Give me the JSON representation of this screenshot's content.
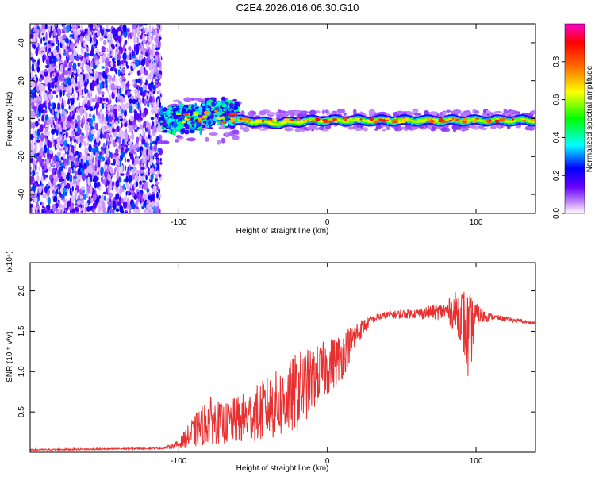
{
  "title": "C2E4.2026.016.06.30.G10",
  "colors": {
    "axis": "#000000",
    "snr_line": "#e83030",
    "background": "#ffffff"
  },
  "chart_data": [
    {
      "type": "heatmap",
      "name": "spectrogram",
      "xlabel": "Height of straight line (km)",
      "ylabel": "Frequency (Hz)",
      "xlim": [
        -200,
        140
      ],
      "ylim": [
        -50,
        50
      ],
      "x_ticks": [
        -100,
        0,
        100
      ],
      "x_tick_labels": [
        "-100",
        "0",
        "100"
      ],
      "y_ticks": [
        -40,
        -20,
        0,
        20,
        40
      ],
      "y_tick_labels": [
        "-40",
        "-20",
        "0",
        "20",
        "40"
      ],
      "colorbar": {
        "label": "Normalized spectral amplitude",
        "range": [
          0,
          1
        ],
        "ticks": [
          0.0,
          0.2,
          0.4,
          0.6,
          0.8
        ],
        "tick_labels": [
          "0.0",
          "0.2",
          "0.4",
          "0.6",
          "0.8"
        ],
        "colormap": [
          "#ffffff",
          "#cc99ff",
          "#6600ff",
          "#0000ff",
          "#00ffff",
          "#00ff00",
          "#ffff00",
          "#ff6600",
          "#ff0000",
          "#ff00cc"
        ]
      },
      "features": [
        {
          "region": "noise",
          "x_range": [
            -200,
            -112
          ],
          "freq_range": [
            -50,
            50
          ],
          "amplitude": "0.0-0.25"
        },
        {
          "region": "onset",
          "x_range": [
            -112,
            -60
          ],
          "freq_center": 0,
          "freq_spread": 8,
          "amplitude": "0.2-0.5"
        },
        {
          "region": "signal",
          "x_range": [
            -60,
            140
          ],
          "freq_center": -1,
          "freq_spread": 2,
          "amplitude": "0.4-0.9"
        }
      ]
    },
    {
      "type": "line",
      "name": "snr",
      "xlabel": "Height of straight line (km)",
      "ylabel": "SNR (10 * v/v)",
      "y_scale_label": "(x10⁴)",
      "xlim": [
        -200,
        140
      ],
      "ylim": [
        0,
        2.35
      ],
      "x_ticks": [
        -100,
        0,
        100
      ],
      "x_tick_labels": [
        "-100",
        "0",
        "100"
      ],
      "y_ticks": [
        0.5,
        1.0,
        1.5,
        2.0
      ],
      "y_tick_labels": [
        "0.5",
        "1.0",
        "1.5",
        "2.0"
      ],
      "series": [
        {
          "name": "SNR",
          "envelope_x": [
            -200,
            -150,
            -110,
            -100,
            -90,
            -80,
            -70,
            -60,
            -50,
            -40,
            -30,
            -20,
            -10,
            0,
            10,
            20,
            30,
            40,
            60,
            80,
            90,
            95,
            100,
            110,
            120,
            140
          ],
          "envelope_mean": [
            0.03,
            0.04,
            0.05,
            0.1,
            0.25,
            0.4,
            0.35,
            0.4,
            0.45,
            0.55,
            0.62,
            0.75,
            0.9,
            1.05,
            1.2,
            1.48,
            1.65,
            1.7,
            1.72,
            1.75,
            1.72,
            1.4,
            1.7,
            1.68,
            1.65,
            1.6
          ],
          "envelope_noise": [
            0.01,
            0.01,
            0.01,
            0.05,
            0.2,
            0.3,
            0.25,
            0.3,
            0.35,
            0.4,
            0.45,
            0.5,
            0.4,
            0.35,
            0.3,
            0.15,
            0.05,
            0.05,
            0.06,
            0.12,
            0.35,
            0.6,
            0.15,
            0.04,
            0.03,
            0.02
          ]
        }
      ]
    }
  ]
}
